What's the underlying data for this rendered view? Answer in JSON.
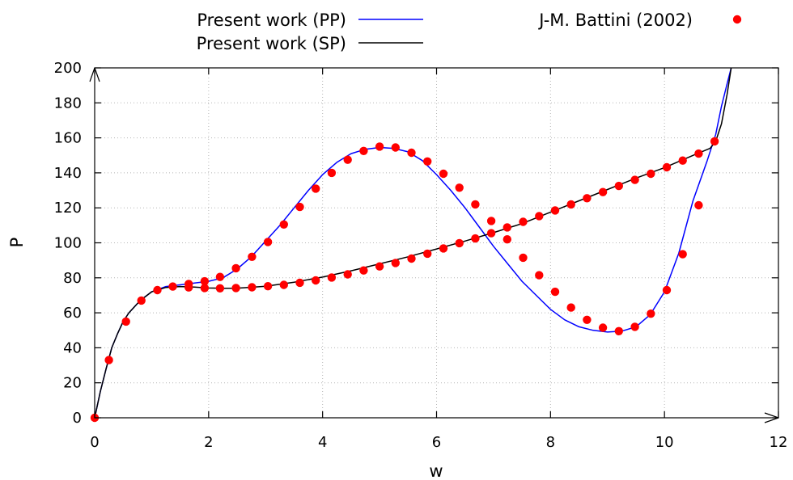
{
  "chart_data": {
    "type": "line",
    "xlabel": "w",
    "ylabel": "P",
    "xlim": [
      0,
      12
    ],
    "ylim": [
      0,
      200
    ],
    "x_ticks": [
      "0",
      "2",
      "4",
      "6",
      "8",
      "10",
      "12"
    ],
    "y_ticks": [
      "0",
      "20",
      "40",
      "60",
      "80",
      "100",
      "120",
      "140",
      "160",
      "180",
      "200"
    ],
    "grid": true,
    "legend": "top",
    "series": [
      {
        "name": "Present work (PP)",
        "style": "line",
        "color": "#0000ff",
        "x": [
          0,
          0.1,
          0.2,
          0.3,
          0.4,
          0.5,
          0.6,
          0.8,
          1.0,
          1.25,
          1.5,
          1.75,
          2.0,
          2.25,
          2.5,
          2.75,
          3.0,
          3.25,
          3.5,
          3.75,
          4.0,
          4.25,
          4.5,
          4.75,
          5.0,
          5.25,
          5.5,
          5.75,
          6.0,
          6.25,
          6.5,
          6.75,
          7.0,
          7.25,
          7.5,
          7.75,
          8.0,
          8.25,
          8.5,
          8.75,
          9.0,
          9.25,
          9.5,
          9.75,
          10.0,
          10.25,
          10.5,
          10.75,
          10.9,
          11.0,
          11.1,
          11.17
        ],
        "y": [
          0,
          15,
          28,
          40,
          48,
          55,
          60,
          67,
          72,
          75,
          76,
          77,
          78,
          80,
          85,
          92,
          101,
          110,
          120,
          130,
          139,
          146,
          151,
          153.5,
          154.5,
          154,
          152,
          147,
          139,
          130,
          120,
          109,
          98,
          88,
          78,
          70,
          62,
          56,
          52,
          50,
          49,
          49.5,
          52,
          59,
          72,
          94,
          124,
          147,
          162,
          178,
          191,
          200
        ]
      },
      {
        "name": "Present work (SP)",
        "style": "line",
        "color": "#000000",
        "x": [
          0,
          0.1,
          0.2,
          0.3,
          0.4,
          0.5,
          0.6,
          0.8,
          1.0,
          1.25,
          1.5,
          1.75,
          2.0,
          2.25,
          2.5,
          2.75,
          3.0,
          3.5,
          4.0,
          4.5,
          5.0,
          5.5,
          6.0,
          6.5,
          7.0,
          7.5,
          8.0,
          8.5,
          9.0,
          9.5,
          10.0,
          10.5,
          10.8,
          10.9,
          11.0,
          11.1,
          11.17
        ],
        "y": [
          0,
          15,
          28,
          40,
          48,
          55,
          60,
          67,
          72,
          74.5,
          75,
          74.7,
          74.2,
          74,
          74.1,
          74.6,
          75.2,
          77.5,
          80.4,
          84,
          88,
          92,
          96.5,
          101,
          105.8,
          111,
          117.5,
          124,
          130.5,
          137,
          143,
          150,
          154,
          158,
          168,
          185,
          200
        ]
      },
      {
        "name": "J-M. Battini (2002)",
        "style": "points",
        "color": "#ff0000",
        "x": [
          0,
          0.25,
          0.55,
          0.82,
          1.1,
          1.37,
          1.65,
          1.65,
          1.93,
          1.93,
          2.2,
          2.2,
          2.48,
          2.48,
          2.76,
          2.76,
          3.04,
          3.04,
          3.32,
          3.32,
          3.6,
          3.6,
          3.88,
          3.88,
          4.16,
          4.16,
          4.44,
          4.44,
          4.72,
          4.72,
          5.0,
          5.0,
          5.28,
          5.28,
          5.56,
          5.56,
          5.84,
          5.84,
          6.12,
          6.12,
          6.4,
          6.4,
          6.68,
          6.68,
          6.96,
          6.96,
          7.24,
          7.24,
          7.52,
          7.52,
          7.8,
          7.8,
          8.08,
          8.08,
          8.36,
          8.36,
          8.64,
          8.64,
          8.92,
          8.92,
          9.2,
          9.2,
          9.48,
          9.48,
          9.76,
          9.76,
          10.04,
          10.04,
          10.32,
          10.32,
          10.6,
          10.6,
          10.88
        ],
        "y": [
          0,
          33,
          55,
          67,
          73,
          75,
          76.5,
          74.5,
          78,
          74.2,
          80.5,
          74,
          85.5,
          74.2,
          92,
          74.6,
          100.5,
          75.2,
          110.5,
          76,
          120.5,
          77.2,
          131,
          78.5,
          140,
          80.2,
          147.5,
          82,
          152.5,
          84.2,
          155,
          86.5,
          154.5,
          88.5,
          151.5,
          91,
          146.5,
          93.8,
          139.5,
          96.8,
          131.5,
          99.8,
          122,
          102.5,
          112.5,
          105.5,
          102,
          108.8,
          91.5,
          112,
          81.5,
          115.3,
          72,
          118.5,
          63,
          122,
          56,
          125.5,
          51.5,
          129,
          49.5,
          132.5,
          52,
          136,
          59.5,
          139.5,
          73,
          143.2,
          93.5,
          147,
          121.5,
          151,
          158
        ]
      }
    ]
  }
}
